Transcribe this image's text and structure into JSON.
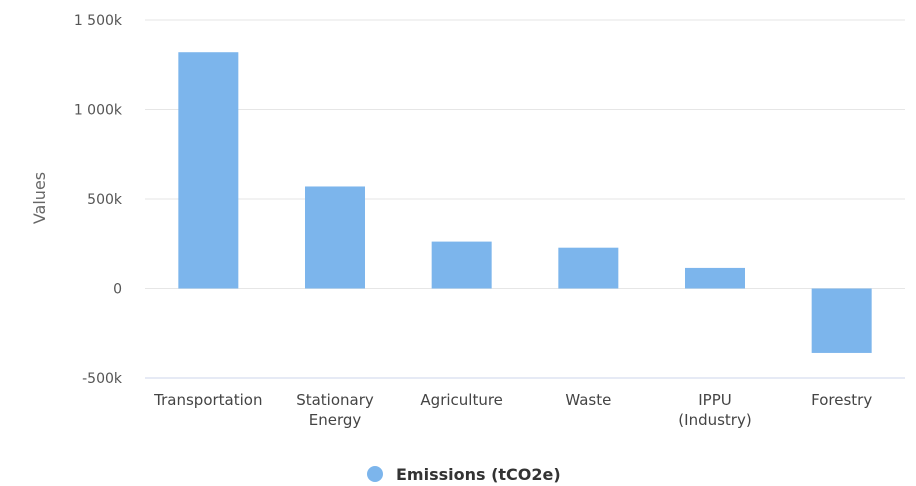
{
  "chart_data": {
    "type": "bar",
    "title": "",
    "xlabel": "",
    "ylabel": "Values",
    "ylim": [
      -500000,
      1500000
    ],
    "yticks": [
      {
        "value": -500000,
        "label": "-500k"
      },
      {
        "value": 0,
        "label": "0"
      },
      {
        "value": 500000,
        "label": "500k"
      },
      {
        "value": 1000000,
        "label": "1 000k"
      },
      {
        "value": 1500000,
        "label": "1 500k"
      }
    ],
    "categories": [
      [
        "Transportation"
      ],
      [
        "Stationary",
        "Energy"
      ],
      [
        "Agriculture"
      ],
      [
        "Waste"
      ],
      [
        "IPPU",
        "(Industry)"
      ],
      [
        "Forestry"
      ]
    ],
    "series": [
      {
        "name": "Emissions (tCO2e)",
        "color": "#7cb5ec",
        "values": [
          1320000,
          570000,
          262000,
          228000,
          115000,
          -360000
        ]
      }
    ],
    "grid": true,
    "legend": "bottom-center"
  }
}
